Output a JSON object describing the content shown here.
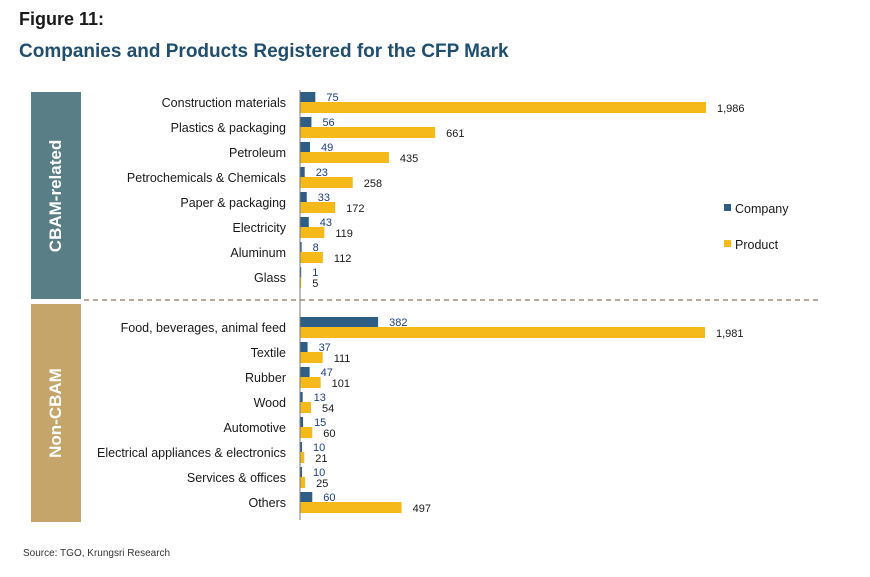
{
  "figure": {
    "label": "Figure 11:",
    "title": "Companies and Products Registered for the CFP Mark",
    "source": "Source: TGO, Krungsri Research"
  },
  "colors": {
    "company": "#2e5e85",
    "product": "#f5b91a",
    "title": "#1f4e6e",
    "band_cbam": "#5a7e86",
    "band_non_cbam": "#c6a56a",
    "divider": "#8a7b5c"
  },
  "chart_data": {
    "type": "bar",
    "orientation": "horizontal",
    "legend": {
      "position": "right",
      "entries": [
        "Company",
        "Product"
      ]
    },
    "groups": [
      {
        "label": "CBAM-related",
        "categories": [
          "Construction materials",
          "Plastics & packaging",
          "Petroleum",
          "Petrochemicals & Chemicals",
          "Paper & packaging",
          "Electricity",
          "Aluminum",
          "Glass"
        ],
        "company": [
          75,
          56,
          49,
          23,
          33,
          43,
          8,
          1
        ],
        "product": [
          1986,
          661,
          435,
          258,
          172,
          119,
          112,
          5
        ],
        "company_labels": [
          "75",
          "56",
          "49",
          "23",
          "33",
          "43",
          "8",
          "1"
        ],
        "product_labels": [
          "1,986",
          "661",
          "435",
          "258",
          "172",
          "119",
          "112",
          "5"
        ]
      },
      {
        "label": "Non-CBAM",
        "categories": [
          "Food, beverages, animal feed",
          "Textile",
          "Rubber",
          "Wood",
          "Automotive",
          "Electrical appliances & electronics",
          "Services & offices",
          "Others"
        ],
        "company": [
          382,
          37,
          47,
          13,
          15,
          10,
          10,
          60
        ],
        "product": [
          1981,
          111,
          101,
          54,
          60,
          21,
          25,
          497
        ],
        "company_labels": [
          "382",
          "37",
          "47",
          "13",
          "15",
          "10",
          "10",
          "60"
        ],
        "product_labels": [
          "1,981",
          "111",
          "101",
          "54",
          "60",
          "21",
          "25",
          "497"
        ]
      }
    ],
    "xlim": [
      0,
      1986
    ],
    "grid": false
  }
}
